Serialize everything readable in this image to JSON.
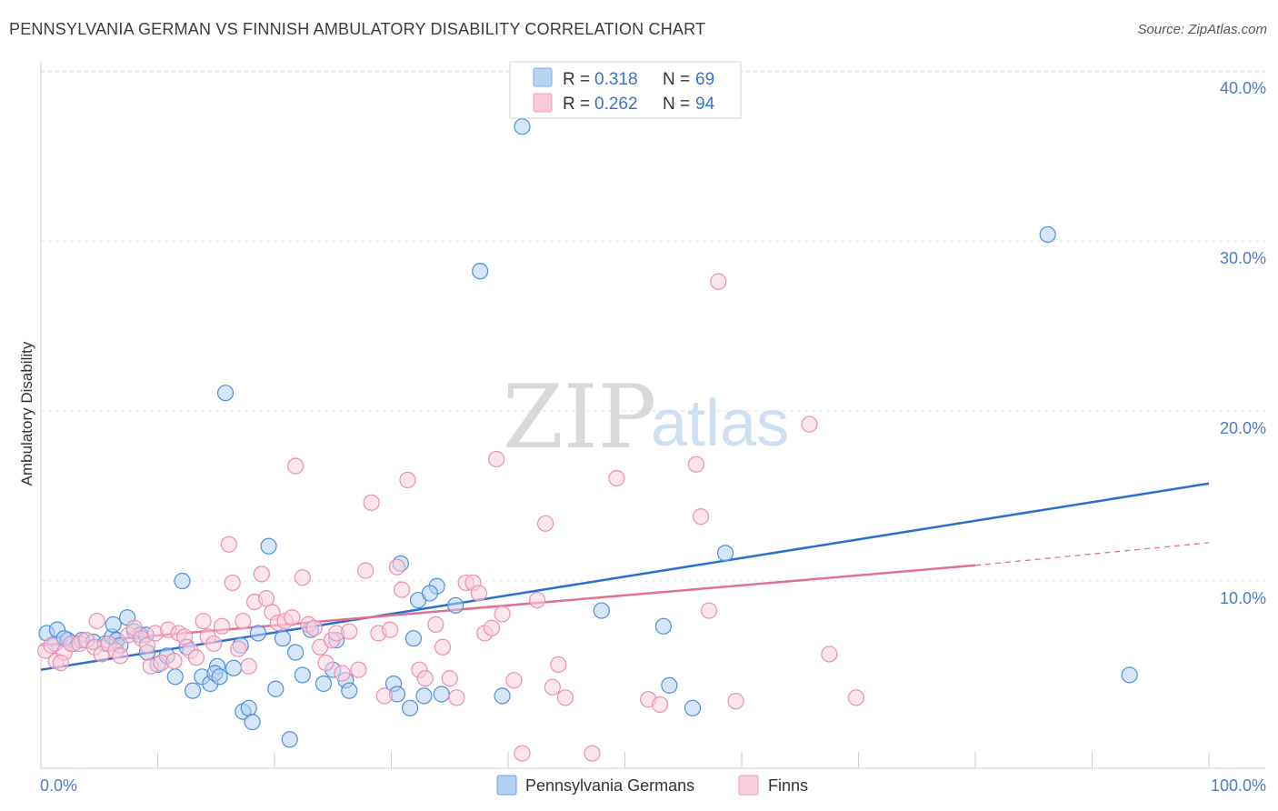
{
  "title": "PENNSYLVANIA GERMAN VS FINNISH AMBULATORY DISABILITY CORRELATION CHART",
  "source": "Source: ZipAtlas.com",
  "watermark": {
    "zip": "ZIP",
    "atlas": "atlas"
  },
  "legend": {
    "r_label": "R =",
    "n_label": "N =",
    "rows": [
      {
        "r": "0.318",
        "n": "69",
        "color": "#7aaee8",
        "fill": "#b9d3f3"
      },
      {
        "r": "0.262",
        "n": "94",
        "color": "#f09ab6",
        "fill": "#f8c9d8"
      }
    ]
  },
  "chart_data": {
    "type": "scatter",
    "title": "PENNSYLVANIA GERMAN VS FINNISH AMBULATORY DISABILITY CORRELATION CHART",
    "xlabel": "",
    "ylabel": "Ambulatory Disability",
    "xlim": [
      0,
      100
    ],
    "ylim": [
      0,
      40
    ],
    "x_tick_labels": [
      "0.0%",
      "100.0%"
    ],
    "y_ticks": [
      10,
      20,
      30,
      40
    ],
    "y_tick_labels": [
      "10.0%",
      "20.0%",
      "30.0%",
      "40.0%"
    ],
    "grid": true,
    "legend_position": "top-center",
    "series": [
      {
        "name": "Pennsylvania Germans",
        "color": "#4f8fdc",
        "fill": "#b5d0f2",
        "trend": {
          "x": [
            0,
            100
          ],
          "y": [
            5.5,
            16.2
          ],
          "color": "#2a6fd1"
        },
        "points": [
          [
            0.5,
            7.6
          ],
          [
            1.2,
            7.0
          ],
          [
            1.4,
            7.8
          ],
          [
            2.3,
            7.2
          ],
          [
            2.8,
            7.0
          ],
          [
            3.5,
            7.2
          ],
          [
            4.5,
            7.1
          ],
          [
            5.5,
            7.0
          ],
          [
            6.1,
            7.4
          ],
          [
            6.5,
            7.2
          ],
          [
            6.2,
            8.1
          ],
          [
            7.4,
            8.5
          ],
          [
            8.0,
            7.7
          ],
          [
            8.5,
            7.5
          ],
          [
            9.0,
            7.5
          ],
          [
            9.1,
            6.5
          ],
          [
            10.0,
            5.8
          ],
          [
            11.5,
            5.1
          ],
          [
            12.1,
            10.6
          ],
          [
            12.5,
            6.8
          ],
          [
            13.0,
            4.3
          ],
          [
            13.8,
            5.1
          ],
          [
            14.5,
            4.7
          ],
          [
            15.1,
            5.7
          ],
          [
            14.9,
            5.3
          ],
          [
            15.3,
            5.1
          ],
          [
            15.8,
            21.4
          ],
          [
            16.5,
            5.6
          ],
          [
            17.1,
            6.9
          ],
          [
            17.3,
            3.1
          ],
          [
            17.8,
            3.3
          ],
          [
            18.1,
            2.5
          ],
          [
            18.6,
            7.6
          ],
          [
            19.5,
            12.6
          ],
          [
            20.1,
            4.4
          ],
          [
            20.7,
            7.3
          ],
          [
            21.3,
            1.5
          ],
          [
            21.8,
            6.5
          ],
          [
            22.4,
            5.2
          ],
          [
            23.1,
            7.8
          ],
          [
            24.2,
            4.7
          ],
          [
            25.0,
            5.5
          ],
          [
            25.3,
            7.2
          ],
          [
            26.1,
            4.9
          ],
          [
            26.4,
            4.3
          ],
          [
            30.2,
            4.7
          ],
          [
            30.5,
            4.1
          ],
          [
            30.8,
            11.6
          ],
          [
            31.6,
            3.3
          ],
          [
            31.9,
            7.3
          ],
          [
            32.3,
            9.5
          ],
          [
            32.8,
            4.0
          ],
          [
            33.9,
            10.3
          ],
          [
            34.3,
            4.1
          ],
          [
            33.3,
            9.9
          ],
          [
            35.5,
            9.2
          ],
          [
            37.6,
            28.4
          ],
          [
            39.5,
            4.0
          ],
          [
            41.2,
            36.7
          ],
          [
            48.0,
            8.9
          ],
          [
            53.3,
            8.0
          ],
          [
            53.8,
            4.6
          ],
          [
            55.8,
            3.3
          ],
          [
            58.6,
            12.2
          ],
          [
            86.2,
            30.5
          ],
          [
            93.2,
            5.2
          ],
          [
            2.0,
            7.3
          ],
          [
            6.8,
            6.9
          ],
          [
            10.8,
            6.3
          ]
        ]
      },
      {
        "name": "Finns",
        "color": "#ee8fb0",
        "fill": "#f9cfdd",
        "trend": {
          "x": [
            0,
            80
          ],
          "y": [
            6.9,
            11.5
          ],
          "color": "#e2708f",
          "dashed_to": [
            100,
            12.8
          ]
        },
        "points": [
          [
            0.4,
            6.6
          ],
          [
            0.9,
            6.9
          ],
          [
            1.3,
            6.0
          ],
          [
            2.0,
            6.5
          ],
          [
            2.6,
            7.0
          ],
          [
            3.3,
            7.0
          ],
          [
            3.9,
            7.2
          ],
          [
            4.6,
            6.8
          ],
          [
            4.8,
            8.3
          ],
          [
            5.2,
            6.4
          ],
          [
            5.8,
            7.0
          ],
          [
            6.4,
            6.6
          ],
          [
            6.8,
            6.3
          ],
          [
            7.5,
            7.5
          ],
          [
            8.0,
            7.9
          ],
          [
            8.6,
            7.3
          ],
          [
            9.1,
            6.9
          ],
          [
            9.4,
            5.7
          ],
          [
            9.8,
            7.6
          ],
          [
            10.3,
            5.9
          ],
          [
            10.9,
            7.8
          ],
          [
            11.4,
            6.0
          ],
          [
            11.8,
            7.6
          ],
          [
            12.3,
            7.4
          ],
          [
            12.8,
            6.6
          ],
          [
            13.3,
            6.2
          ],
          [
            13.9,
            8.3
          ],
          [
            14.3,
            7.4
          ],
          [
            14.8,
            7.0
          ],
          [
            15.5,
            8.0
          ],
          [
            16.1,
            12.7
          ],
          [
            16.4,
            10.5
          ],
          [
            16.9,
            6.7
          ],
          [
            17.3,
            8.3
          ],
          [
            17.8,
            5.7
          ],
          [
            18.3,
            9.4
          ],
          [
            18.9,
            11.0
          ],
          [
            19.3,
            9.6
          ],
          [
            19.8,
            8.8
          ],
          [
            20.3,
            8.2
          ],
          [
            20.9,
            8.3
          ],
          [
            21.5,
            8.5
          ],
          [
            21.8,
            17.2
          ],
          [
            22.4,
            10.8
          ],
          [
            22.9,
            8.1
          ],
          [
            23.4,
            7.9
          ],
          [
            23.9,
            6.8
          ],
          [
            24.4,
            5.9
          ],
          [
            24.9,
            7.2
          ],
          [
            25.3,
            7.6
          ],
          [
            25.8,
            5.3
          ],
          [
            26.4,
            7.7
          ],
          [
            27.2,
            5.5
          ],
          [
            27.8,
            11.2
          ],
          [
            28.3,
            15.1
          ],
          [
            28.9,
            7.6
          ],
          [
            29.4,
            4.0
          ],
          [
            29.9,
            7.8
          ],
          [
            30.5,
            11.4
          ],
          [
            30.9,
            10.1
          ],
          [
            31.4,
            16.4
          ],
          [
            32.4,
            5.5
          ],
          [
            32.9,
            5.0
          ],
          [
            33.8,
            8.1
          ],
          [
            34.4,
            6.8
          ],
          [
            35.0,
            5.0
          ],
          [
            35.6,
            3.9
          ],
          [
            36.4,
            10.5
          ],
          [
            37.0,
            10.5
          ],
          [
            37.5,
            9.9
          ],
          [
            38.0,
            7.6
          ],
          [
            38.6,
            7.9
          ],
          [
            39.0,
            17.6
          ],
          [
            39.5,
            8.7
          ],
          [
            40.5,
            4.9
          ],
          [
            41.2,
            0.7
          ],
          [
            42.5,
            9.5
          ],
          [
            43.2,
            13.9
          ],
          [
            43.8,
            4.5
          ],
          [
            44.3,
            5.8
          ],
          [
            44.9,
            3.9
          ],
          [
            47.2,
            0.7
          ],
          [
            49.3,
            16.5
          ],
          [
            52.0,
            3.8
          ],
          [
            53.0,
            3.5
          ],
          [
            56.1,
            17.3
          ],
          [
            56.5,
            14.3
          ],
          [
            57.2,
            8.9
          ],
          [
            58.0,
            27.8
          ],
          [
            59.5,
            3.7
          ],
          [
            65.8,
            19.6
          ],
          [
            67.5,
            6.4
          ],
          [
            69.8,
            3.9
          ],
          [
            1.7,
            5.9
          ]
        ]
      }
    ]
  },
  "bottom_legend": [
    {
      "name": "Pennsylvania Germans",
      "fill": "#b5d0f2",
      "stroke": "#6fa0e0"
    },
    {
      "name": "Finns",
      "fill": "#f9cfdd",
      "stroke": "#ef9ab6"
    }
  ]
}
